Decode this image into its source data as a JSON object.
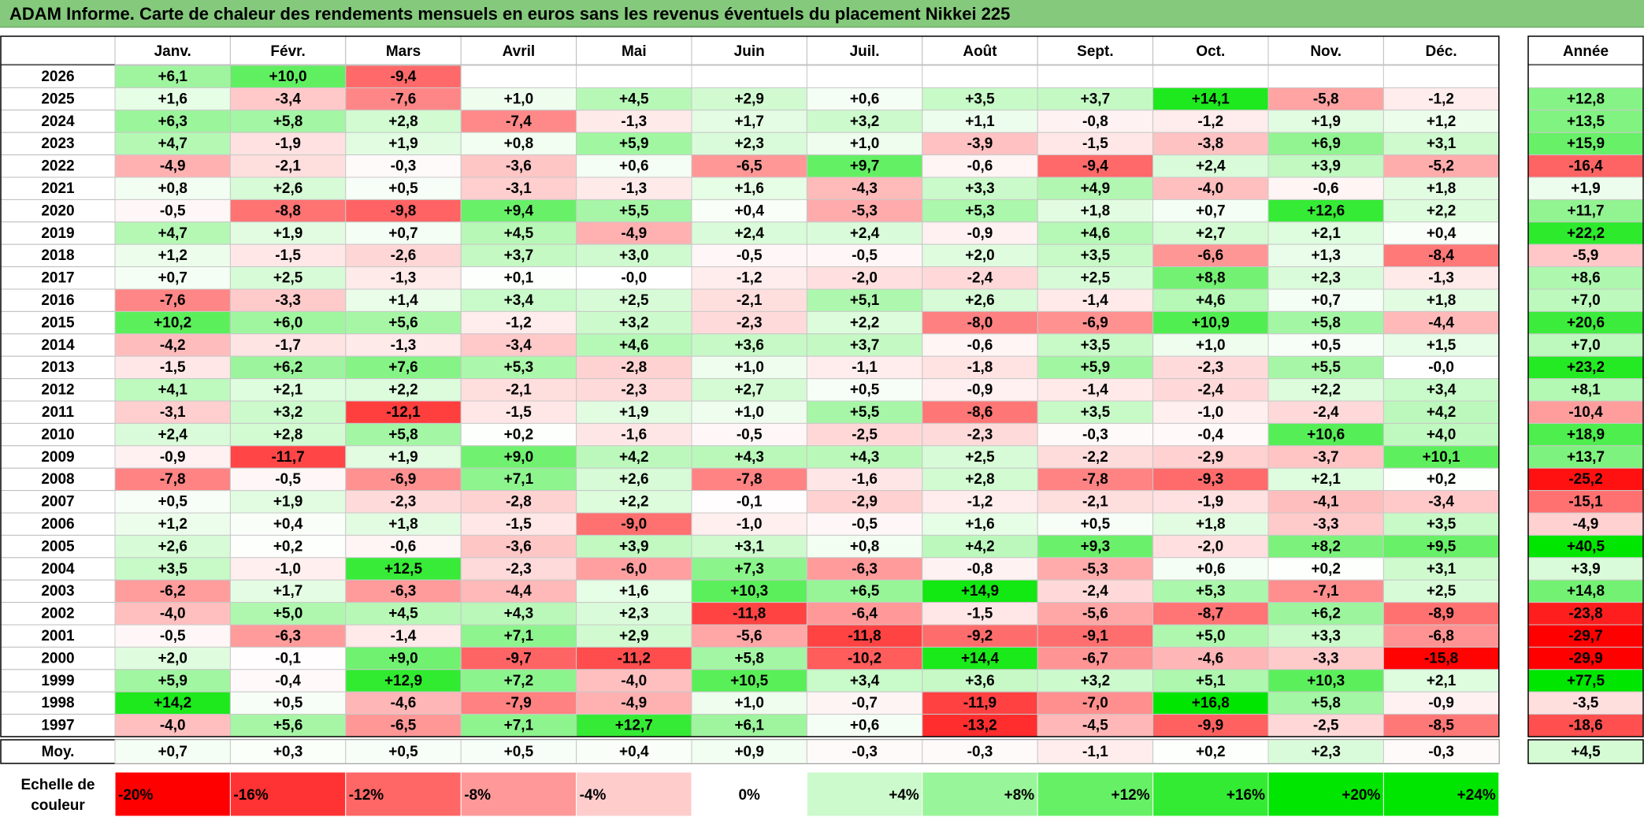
{
  "title": "ADAM Informe. Carte de chaleur des rendements mensuels en euros sans les revenus éventuels du placement Nikkei 225",
  "chart_data": {
    "type": "heatmap",
    "title": "ADAM Informe. Carte de chaleur des rendements mensuels en euros sans les revenus éventuels du placement Nikkei 225",
    "months": [
      "Janv.",
      "Févr.",
      "Mars",
      "Avril",
      "Mai",
      "Juin",
      "Juil.",
      "Août",
      "Sept.",
      "Oct.",
      "Nov.",
      "Déc."
    ],
    "year_header": "Année",
    "years": [
      "2026",
      "2025",
      "2024",
      "2023",
      "2022",
      "2021",
      "2020",
      "2019",
      "2018",
      "2017",
      "2016",
      "2015",
      "2014",
      "2013",
      "2012",
      "2011",
      "2010",
      "2009",
      "2008",
      "2007",
      "2006",
      "2005",
      "2004",
      "2003",
      "2002",
      "2001",
      "2000",
      "1999",
      "1998",
      "1997"
    ],
    "values": [
      [
        "+6,1",
        "+10,0",
        "-9,4",
        "",
        "",
        "",
        "",
        "",
        "",
        "",
        "",
        ""
      ],
      [
        "+1,6",
        "-3,4",
        "-7,6",
        "+1,0",
        "+4,5",
        "+2,9",
        "+0,6",
        "+3,5",
        "+3,7",
        "+14,1",
        "-5,8",
        "-1,2"
      ],
      [
        "+6,3",
        "+5,8",
        "+2,8",
        "-7,4",
        "-1,3",
        "+1,7",
        "+3,2",
        "+1,1",
        "-0,8",
        "-1,2",
        "+1,9",
        "+1,2"
      ],
      [
        "+4,7",
        "-1,9",
        "+1,9",
        "+0,8",
        "+5,9",
        "+2,3",
        "+1,0",
        "-3,9",
        "-1,5",
        "-3,8",
        "+6,9",
        "+3,1"
      ],
      [
        "-4,9",
        "-2,1",
        "-0,3",
        "-3,6",
        "+0,6",
        "-6,5",
        "+9,7",
        "-0,6",
        "-9,4",
        "+2,4",
        "+3,9",
        "-5,2"
      ],
      [
        "+0,8",
        "+2,6",
        "+0,5",
        "-3,1",
        "-1,3",
        "+1,6",
        "-4,3",
        "+3,3",
        "+4,9",
        "-4,0",
        "-0,6",
        "+1,8"
      ],
      [
        "-0,5",
        "-8,8",
        "-9,8",
        "+9,4",
        "+5,5",
        "+0,4",
        "-5,3",
        "+5,3",
        "+1,8",
        "+0,7",
        "+12,6",
        "+2,2"
      ],
      [
        "+4,7",
        "+1,9",
        "+0,7",
        "+4,5",
        "-4,9",
        "+2,4",
        "+2,4",
        "-0,9",
        "+4,6",
        "+2,7",
        "+2,1",
        "+0,4"
      ],
      [
        "+1,2",
        "-1,5",
        "-2,6",
        "+3,7",
        "+3,0",
        "-0,5",
        "-0,5",
        "+2,0",
        "+3,5",
        "-6,6",
        "+1,3",
        "-8,4"
      ],
      [
        "+0,7",
        "+2,5",
        "-1,3",
        "+0,1",
        "-0,0",
        "-1,2",
        "-2,0",
        "-2,4",
        "+2,5",
        "+8,8",
        "+2,3",
        "-1,3"
      ],
      [
        "-7,6",
        "-3,3",
        "+1,4",
        "+3,4",
        "+2,5",
        "-2,1",
        "+5,1",
        "+2,6",
        "-1,4",
        "+4,6",
        "+0,7",
        "+1,8"
      ],
      [
        "+10,2",
        "+6,0",
        "+5,6",
        "-1,2",
        "+3,2",
        "-2,3",
        "+2,2",
        "-8,0",
        "-6,9",
        "+10,9",
        "+5,8",
        "-4,4"
      ],
      [
        "-4,2",
        "-1,7",
        "-1,3",
        "-3,4",
        "+4,6",
        "+3,6",
        "+3,7",
        "-0,6",
        "+3,5",
        "+1,0",
        "+0,5",
        "+1,5"
      ],
      [
        "-1,5",
        "+6,2",
        "+7,6",
        "+5,3",
        "-2,8",
        "+1,0",
        "-1,1",
        "-1,8",
        "+5,9",
        "-2,3",
        "+5,5",
        "-0,0"
      ],
      [
        "+4,1",
        "+2,1",
        "+2,2",
        "-2,1",
        "-2,3",
        "+2,7",
        "+0,5",
        "-0,9",
        "-1,4",
        "-2,4",
        "+2,2",
        "+3,4"
      ],
      [
        "-3,1",
        "+3,2",
        "-12,1",
        "-1,5",
        "+1,9",
        "+1,0",
        "+5,5",
        "-8,6",
        "+3,5",
        "-1,0",
        "-2,4",
        "+4,2"
      ],
      [
        "+2,4",
        "+2,8",
        "+5,8",
        "+0,2",
        "-1,6",
        "-0,5",
        "-2,5",
        "-2,3",
        "-0,3",
        "-0,4",
        "+10,6",
        "+4,0"
      ],
      [
        "-0,9",
        "-11,7",
        "+1,9",
        "+9,0",
        "+4,2",
        "+4,3",
        "+4,3",
        "+2,5",
        "-2,2",
        "-2,9",
        "-3,7",
        "+10,1"
      ],
      [
        "-7,8",
        "-0,5",
        "-6,9",
        "+7,1",
        "+2,6",
        "-7,8",
        "-1,6",
        "+2,8",
        "-7,8",
        "-9,3",
        "+2,1",
        "+0,2"
      ],
      [
        "+0,5",
        "+1,9",
        "-2,3",
        "-2,8",
        "+2,2",
        "-0,1",
        "-2,9",
        "-1,2",
        "-2,1",
        "-1,9",
        "-4,1",
        "-3,4"
      ],
      [
        "+1,2",
        "+0,4",
        "+1,8",
        "-1,5",
        "-9,0",
        "-1,0",
        "-0,5",
        "+1,6",
        "+0,5",
        "+1,8",
        "-3,3",
        "+3,5"
      ],
      [
        "+2,6",
        "+0,2",
        "-0,6",
        "-3,6",
        "+3,9",
        "+3,1",
        "+0,8",
        "+4,2",
        "+9,3",
        "-2,0",
        "+8,2",
        "+9,5"
      ],
      [
        "+3,5",
        "-1,0",
        "+12,5",
        "-2,3",
        "-6,0",
        "+7,3",
        "-6,3",
        "-0,8",
        "-5,3",
        "+0,6",
        "+0,2",
        "+3,1"
      ],
      [
        "-6,2",
        "+1,7",
        "-6,3",
        "-4,4",
        "+1,6",
        "+10,3",
        "+6,5",
        "+14,9",
        "-2,4",
        "+5,3",
        "-7,1",
        "+2,5"
      ],
      [
        "-4,0",
        "+5,0",
        "+4,5",
        "+4,3",
        "+2,3",
        "-11,8",
        "-6,4",
        "-1,5",
        "-5,6",
        "-8,7",
        "+6,2",
        "-8,9"
      ],
      [
        "-0,5",
        "-6,3",
        "-1,4",
        "+7,1",
        "+2,9",
        "-5,6",
        "-11,8",
        "-9,2",
        "-9,1",
        "+5,0",
        "+3,3",
        "-6,8"
      ],
      [
        "+2,0",
        "-0,1",
        "+9,0",
        "-9,7",
        "-11,2",
        "+5,8",
        "-10,2",
        "+14,4",
        "-6,7",
        "-4,6",
        "-3,3",
        "-15,8"
      ],
      [
        "+5,9",
        "-0,4",
        "+12,9",
        "+7,2",
        "-4,0",
        "+10,5",
        "+3,4",
        "+3,6",
        "+3,2",
        "+5,1",
        "+10,3",
        "+2,1"
      ],
      [
        "+14,2",
        "+0,5",
        "-4,6",
        "-7,9",
        "-4,9",
        "+1,0",
        "-0,7",
        "-11,9",
        "-7,0",
        "+16,8",
        "+5,8",
        "-0,9"
      ],
      [
        "-4,0",
        "+5,6",
        "-6,5",
        "+7,1",
        "+12,7",
        "+6,1",
        "+0,6",
        "-13,2",
        "-4,5",
        "-9,9",
        "-2,5",
        "-8,5"
      ]
    ],
    "annual": [
      "",
      "+12,8",
      "+13,5",
      "+15,9",
      "-16,4",
      "+1,9",
      "+11,7",
      "+22,2",
      "-5,9",
      "+8,6",
      "+7,0",
      "+20,6",
      "+7,0",
      "+23,2",
      "+8,1",
      "-10,4",
      "+18,9",
      "+13,7",
      "-25,2",
      "-15,1",
      "-4,9",
      "+40,5",
      "+3,9",
      "+14,8",
      "-23,8",
      "-29,7",
      "-29,9",
      "+77,5",
      "-3,5",
      "-18,6"
    ],
    "average_label": "Moy.",
    "averages": [
      "+0,7",
      "+0,3",
      "+0,5",
      "+0,5",
      "+0,4",
      "+0,9",
      "-0,3",
      "-0,3",
      "-1,1",
      "+0,2",
      "+2,3",
      "-0,3"
    ],
    "average_annual": "+4,5",
    "scale": {
      "label_line1": "Echelle de",
      "label_line2": "couleur",
      "stops": [
        "-20%",
        "-16%",
        "-12%",
        "-8%",
        "-4%",
        "0%",
        "+4%",
        "+8%",
        "+12%",
        "+16%",
        "+20%",
        "+24%"
      ],
      "stop_values": [
        -20,
        -16,
        -12,
        -8,
        -4,
        0,
        4,
        8,
        12,
        16,
        20,
        24
      ]
    },
    "colors": {
      "negative": "#ff0000",
      "neutral": "#ffffff",
      "positive": "#00e600",
      "title_bg": "#84c97c"
    }
  }
}
